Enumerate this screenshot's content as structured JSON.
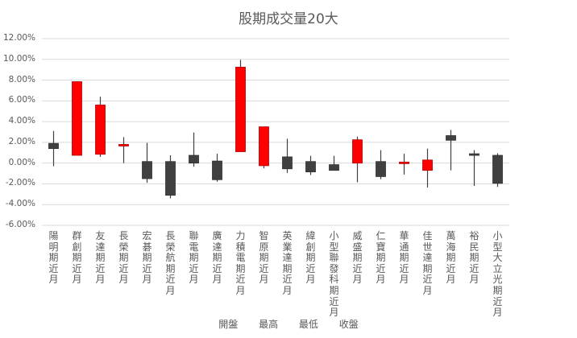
{
  "chart_data": {
    "type": "candlestick",
    "title": "股期成交量20大",
    "xlabel": "",
    "ylabel": "",
    "ylim": [
      -0.06,
      0.12
    ],
    "y_ticks": [
      "12.00%",
      "10.00%",
      "8.00%",
      "6.00%",
      "4.00%",
      "2.00%",
      "0.00%",
      "-2.00%",
      "-4.00%",
      "-6.00%"
    ],
    "grid": true,
    "legend_position": "bottom",
    "legend": [
      "開盤",
      "最高",
      "最低",
      "收盤"
    ],
    "colors": {
      "up": "#ff0000",
      "down": "#404040",
      "wick": "#404040",
      "grid": "#d9d9d9"
    },
    "categories": [
      "陽明期近月",
      "群創期近月",
      "友達期近月",
      "長榮期近月",
      "宏碁期近月",
      "長榮航期近月",
      "聯電期近月",
      "廣達期近月",
      "力積電期近月",
      "智原期近月",
      "英業達期近月",
      "緯創期近月",
      "小型聯發科期近月",
      "威盛期近月",
      "仁寶期近月",
      "華通期近月",
      "佳世達期近月",
      "萬海期近月",
      "裕民期近月",
      "小型大立光期近月"
    ],
    "series": [
      {
        "name": "開盤",
        "values": [
          1.9,
          0.75,
          0.85,
          1.8,
          0.15,
          0.15,
          0.75,
          0.2,
          1.1,
          -0.25,
          0.6,
          0.15,
          -0.15,
          0.0,
          0.15,
          0.0,
          -0.7,
          2.65,
          0.9,
          0.75
        ]
      },
      {
        "name": "最高",
        "values": [
          3.1,
          7.85,
          6.4,
          2.5,
          1.95,
          0.75,
          2.95,
          0.9,
          9.95,
          3.5,
          2.35,
          0.7,
          0.7,
          2.55,
          1.25,
          0.9,
          1.4,
          3.2,
          1.25,
          0.95
        ]
      },
      {
        "name": "最低",
        "values": [
          -0.3,
          0.75,
          0.6,
          0.0,
          -1.9,
          -3.4,
          -0.35,
          -1.8,
          1.1,
          -0.5,
          -0.95,
          -1.15,
          -0.7,
          -1.85,
          -1.55,
          -1.1,
          -2.35,
          -0.7,
          -2.2,
          -2.3
        ]
      },
      {
        "name": "收盤",
        "values": [
          1.4,
          7.85,
          5.6,
          1.8,
          -1.5,
          -3.1,
          0.0,
          -1.6,
          9.25,
          3.5,
          -0.55,
          -0.85,
          -0.7,
          2.25,
          -1.3,
          0.1,
          0.3,
          2.2,
          0.8,
          -1.95
        ]
      }
    ],
    "value_unit": "%"
  }
}
